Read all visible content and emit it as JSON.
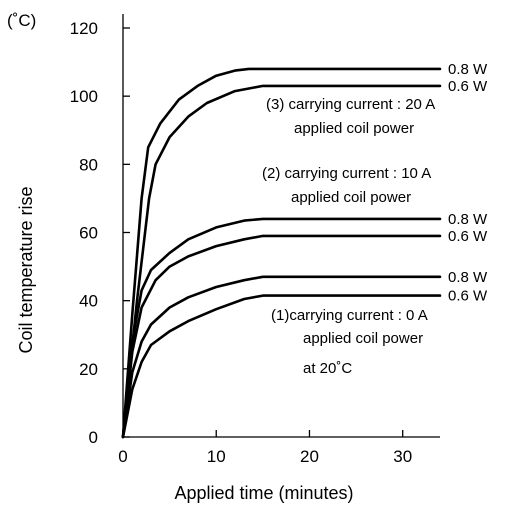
{
  "chart_data": {
    "type": "line",
    "xlabel": "Applied time (minutes)",
    "ylabel": "Coil temperature rise",
    "y_unit": "(˚C)",
    "xlim": [
      0,
      34
    ],
    "ylim": [
      0,
      120
    ],
    "x_ticks": [
      0,
      10,
      20,
      30
    ],
    "y_ticks": [
      0,
      20,
      40,
      60,
      80,
      100,
      120
    ],
    "grid": false,
    "series": [
      {
        "name": "0.8 W",
        "group": "(3) carrying current : 20 A",
        "values": [
          [
            0,
            0
          ],
          [
            1,
            36
          ],
          [
            2,
            70
          ],
          [
            2.7,
            85
          ],
          [
            4,
            92
          ],
          [
            6,
            99
          ],
          [
            8,
            103
          ],
          [
            10,
            106
          ],
          [
            12,
            107.5
          ],
          [
            13.5,
            108
          ],
          [
            34,
            108
          ]
        ]
      },
      {
        "name": "0.6 W",
        "group": "(3) carrying current : 20 A",
        "values": [
          [
            0,
            0
          ],
          [
            1.5,
            40
          ],
          [
            2.8,
            70
          ],
          [
            3.5,
            80
          ],
          [
            5,
            88
          ],
          [
            7,
            94
          ],
          [
            9,
            98
          ],
          [
            12,
            101.5
          ],
          [
            14,
            102.5
          ],
          [
            15,
            103
          ],
          [
            34,
            103
          ]
        ]
      },
      {
        "name": "0.8 W",
        "group": "(2) carrying current : 10 A",
        "values": [
          [
            0,
            0
          ],
          [
            1,
            28
          ],
          [
            2,
            43
          ],
          [
            3,
            49
          ],
          [
            5,
            54
          ],
          [
            7,
            58
          ],
          [
            10,
            61.5
          ],
          [
            13,
            63.5
          ],
          [
            15,
            64
          ],
          [
            34,
            64
          ]
        ]
      },
      {
        "name": "0.6 W",
        "group": "(2) carrying current : 10 A",
        "values": [
          [
            0,
            0
          ],
          [
            1,
            25
          ],
          [
            2,
            38
          ],
          [
            3.5,
            46
          ],
          [
            5,
            50
          ],
          [
            7,
            53
          ],
          [
            10,
            56
          ],
          [
            13,
            58
          ],
          [
            15,
            59
          ],
          [
            34,
            59
          ]
        ]
      },
      {
        "name": "0.8 W",
        "group": "(1)carrying current : 0 A",
        "values": [
          [
            0,
            0
          ],
          [
            1,
            19
          ],
          [
            2,
            28
          ],
          [
            3,
            33
          ],
          [
            5,
            38
          ],
          [
            7,
            41
          ],
          [
            10,
            44
          ],
          [
            13,
            46
          ],
          [
            15,
            47
          ],
          [
            34,
            47
          ]
        ]
      },
      {
        "name": "0.6 W",
        "group": "(1)carrying current : 0 A",
        "values": [
          [
            0,
            0
          ],
          [
            1,
            14
          ],
          [
            2,
            22
          ],
          [
            3,
            27
          ],
          [
            5,
            31
          ],
          [
            7,
            34
          ],
          [
            10,
            37.5
          ],
          [
            13,
            40.5
          ],
          [
            15,
            41.5
          ],
          [
            34,
            41.5
          ]
        ]
      }
    ],
    "annotations": [
      {
        "lines": [
          "(3) carrying current : 20 A",
          "applied coil power"
        ]
      },
      {
        "lines": [
          "(2) carrying current : 10 A",
          "applied coil power"
        ]
      },
      {
        "lines": [
          "(1)carrying current : 0 A",
          "applied coil power",
          "at 20˚C"
        ]
      }
    ]
  }
}
